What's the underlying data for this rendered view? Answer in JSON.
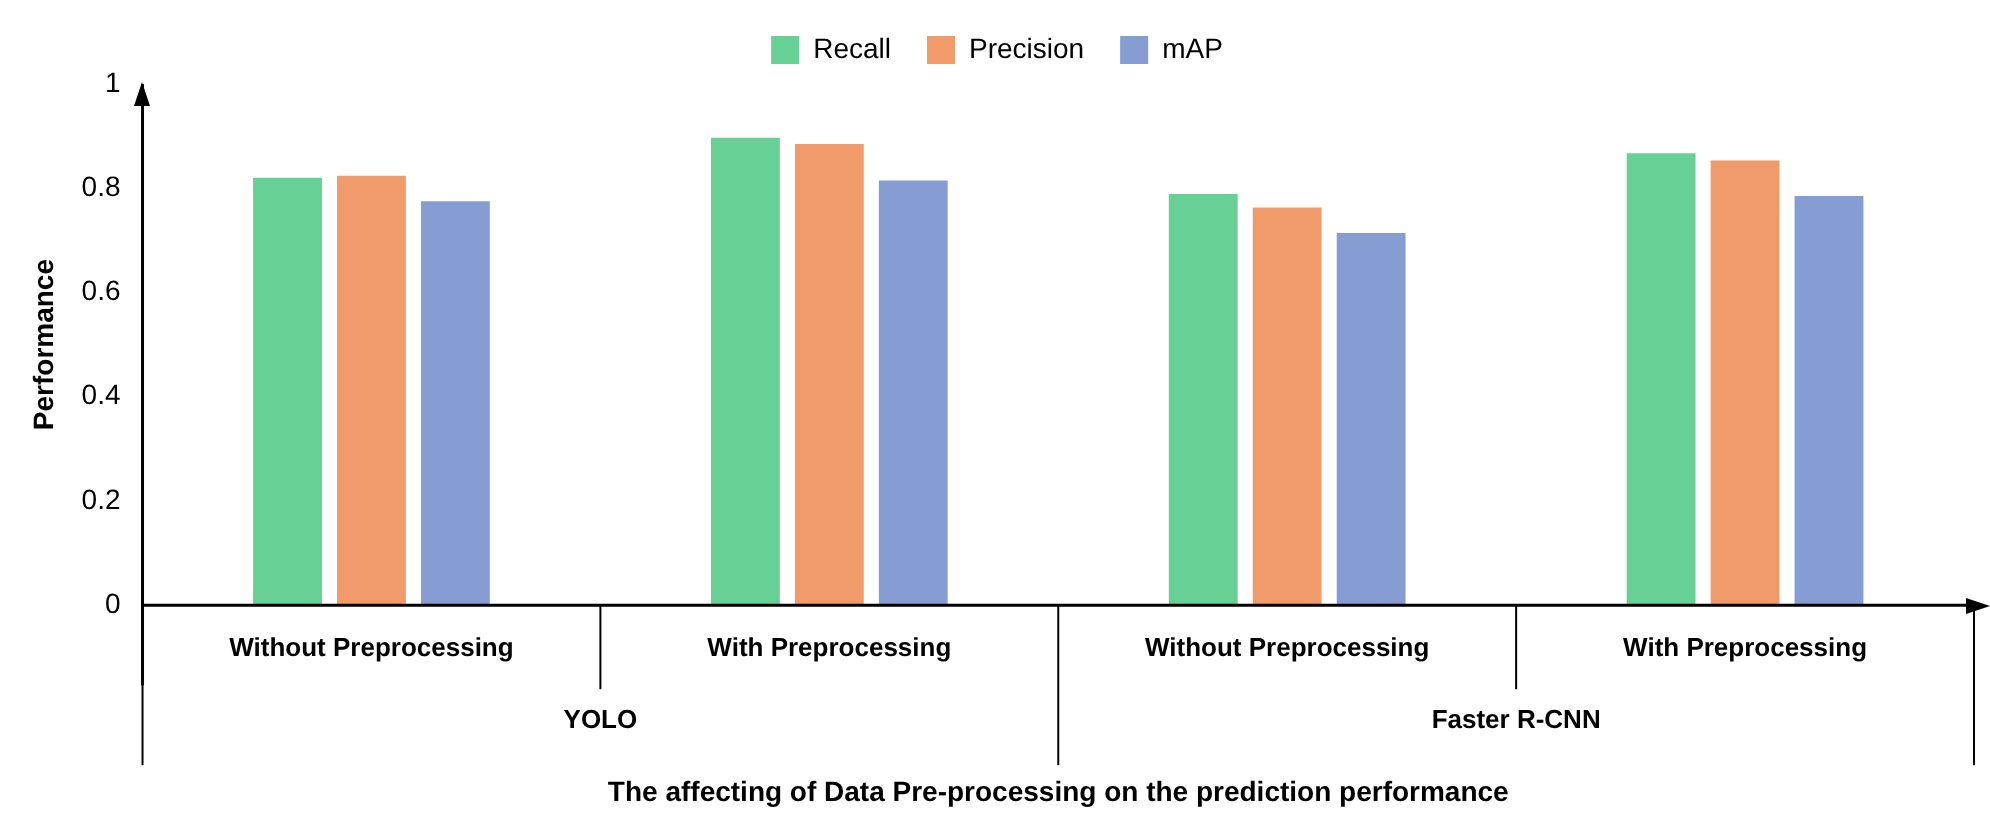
{
  "chart_data": {
    "type": "bar",
    "xlabel": "The affecting of Data Pre-processing on the prediction performance",
    "ylabel": "Performance",
    "categories": [
      "Without Preprocessing",
      "With Preprocessing",
      "Without Preprocessing",
      "With Preprocessing"
    ],
    "series": [
      {
        "name": "Recall",
        "color": "#66d095",
        "values": [
          0.82,
          0.897,
          0.789,
          0.867
        ]
      },
      {
        "name": "Precision",
        "color": "#f19b6a",
        "values": [
          0.824,
          0.885,
          0.763,
          0.853
        ]
      },
      {
        "name": "mAP",
        "color": "#869dd4",
        "values": [
          0.775,
          0.815,
          0.714,
          0.785
        ]
      }
    ],
    "annotations": [
      "YOLO",
      "Faster R-CNN"
    ],
    "ylim": [
      0,
      1
    ],
    "yticks": [
      0,
      0.2,
      0.4,
      0.6,
      0.8,
      1
    ],
    "grid": false,
    "legend": "top"
  }
}
